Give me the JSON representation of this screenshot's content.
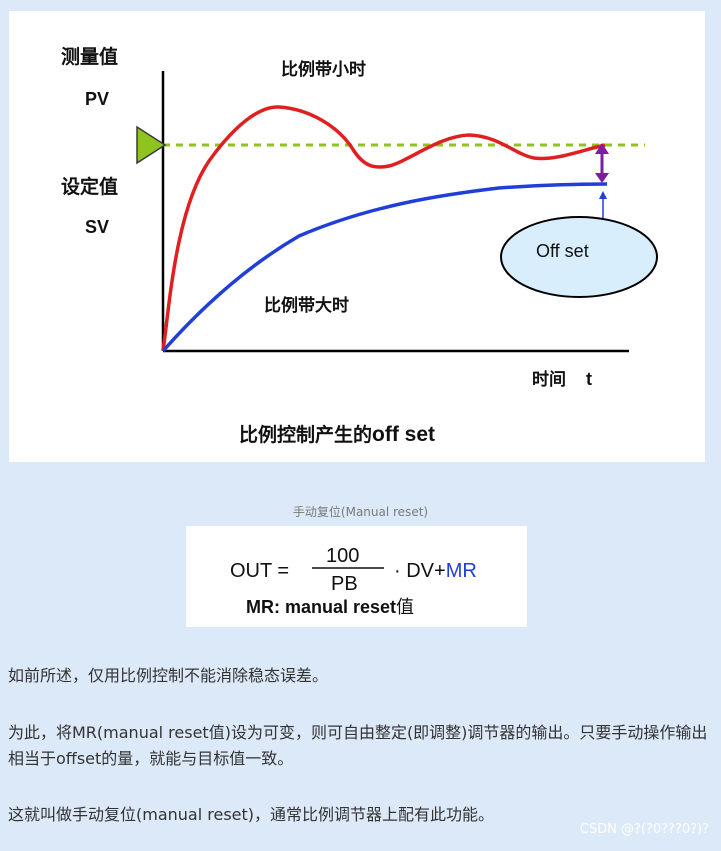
{
  "figure": {
    "y_label_top": "测量值",
    "pv": "PV",
    "y_label_mid": "设定值",
    "sv": "SV",
    "x_label": "时间",
    "x_symbol": "t",
    "label_small_pb": "比例带小时",
    "label_large_pb": "比例带大时",
    "offset_label": "Off set",
    "bottom_title_cn": "比例控制产生的",
    "bottom_title_en": "off set",
    "colors": {
      "setpoint": "#8fc31f",
      "small_pb": "#e02020",
      "large_pb": "#1f3fd8",
      "offset_arrow": "#7a1fa0",
      "ellipse_fill": "#d8eefc"
    }
  },
  "caption": "手动复位(Manual reset)",
  "formula": {
    "lhs": "OUT =",
    "numerator": "100",
    "denominator": "PB",
    "tail": "· DV+",
    "mr": "MR",
    "note_en": "MR: manual reset",
    "note_cn": "值"
  },
  "paragraphs": [
    "如前所述，仅用比例控制不能消除稳态误差。",
    "为此，将MR(manual reset值)设为可变，则可自由整定(即调整)调节器的输出。只要手动操作输出相当于offset的量，就能与目标值一致。",
    "这就叫做手动复位(manual reset)，通常比例调节器上配有此功能。"
  ],
  "watermark": "CSDN @?(?0???0?)?"
}
